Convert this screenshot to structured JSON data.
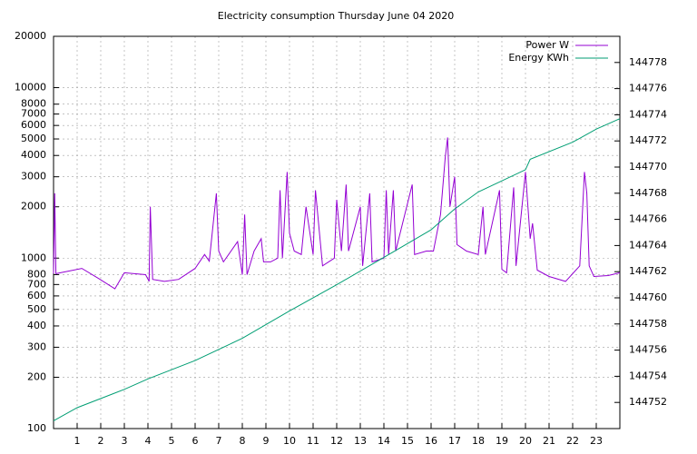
{
  "chart_data": {
    "type": "line",
    "title": "Electricity consumption Thursday June 04 2020",
    "xlim": [
      0,
      24
    ],
    "xticks": [
      1,
      2,
      3,
      4,
      5,
      6,
      7,
      8,
      9,
      10,
      11,
      12,
      13,
      14,
      15,
      16,
      17,
      18,
      19,
      20,
      21,
      22,
      23
    ],
    "ylim": [
      100,
      20000
    ],
    "log_y": true,
    "yticks": [
      100,
      200,
      300,
      400,
      500,
      600,
      700,
      800,
      1000,
      2000,
      3000,
      4000,
      5000,
      6000,
      7000,
      8000,
      10000,
      20000
    ],
    "y2lim": [
      144750,
      144780
    ],
    "y2ticks": [
      144752,
      144754,
      144756,
      144758,
      144760,
      144762,
      144764,
      144766,
      144768,
      144770,
      144772,
      144774,
      144776,
      144778
    ],
    "grid": true,
    "legend": "top-right",
    "series": [
      {
        "name": "Power W",
        "color": "#9400d3",
        "x": [
          0,
          0.05,
          0.1,
          1.2,
          1.9,
          2.6,
          3.0,
          3.9,
          4.05,
          4.1,
          4.2,
          4.7,
          5.3,
          6.0,
          6.4,
          6.6,
          6.9,
          7.0,
          7.2,
          7.8,
          8.0,
          8.1,
          8.2,
          8.5,
          8.8,
          8.9,
          9.2,
          9.5,
          9.6,
          9.7,
          9.9,
          10.0,
          10.2,
          10.5,
          10.7,
          11.0,
          11.1,
          11.4,
          11.9,
          12.0,
          12.2,
          12.4,
          12.5,
          13.0,
          13.1,
          13.4,
          13.5,
          14.0,
          14.1,
          14.2,
          14.4,
          14.5,
          15.2,
          15.3,
          15.8,
          16.1,
          16.4,
          16.6,
          16.7,
          16.8,
          17.0,
          17.1,
          17.5,
          18.0,
          18.2,
          18.3,
          18.9,
          19.0,
          19.2,
          19.5,
          19.6,
          20.0,
          20.2,
          20.3,
          20.5,
          21.0,
          21.7,
          22.3,
          22.5,
          22.6,
          22.7,
          22.9,
          23.5,
          24
        ],
        "values": [
          810,
          2400,
          810,
          870,
          760,
          660,
          820,
          800,
          730,
          2000,
          750,
          730,
          750,
          870,
          1050,
          960,
          2400,
          1100,
          950,
          1250,
          800,
          1800,
          800,
          1100,
          1300,
          950,
          950,
          1000,
          2500,
          1000,
          3200,
          1400,
          1100,
          1050,
          2000,
          1050,
          2500,
          900,
          1000,
          2200,
          1100,
          2700,
          1100,
          2000,
          900,
          2400,
          950,
          1000,
          2500,
          1050,
          2500,
          1100,
          2700,
          1050,
          1100,
          1100,
          1800,
          3900,
          5100,
          2000,
          3000,
          1200,
          1100,
          1050,
          2000,
          1050,
          2500,
          860,
          820,
          2600,
          900,
          3200,
          1300,
          1600,
          850,
          780,
          730,
          900,
          3200,
          2400,
          900,
          780,
          790,
          820
        ]
      },
      {
        "name": "Energy KWh",
        "color": "#009e73",
        "axis": "y2",
        "x": [
          0,
          1,
          3,
          4,
          6,
          8,
          10,
          12,
          14,
          16,
          17,
          18,
          20,
          20.2,
          22,
          23,
          24
        ],
        "values": [
          144750.6,
          144751.6,
          144753.0,
          144753.8,
          144755.2,
          144756.9,
          144759.0,
          144761.0,
          144763.1,
          144765.2,
          144766.8,
          144768.1,
          144769.8,
          144770.6,
          144771.9,
          144772.9,
          144773.7
        ]
      }
    ]
  }
}
